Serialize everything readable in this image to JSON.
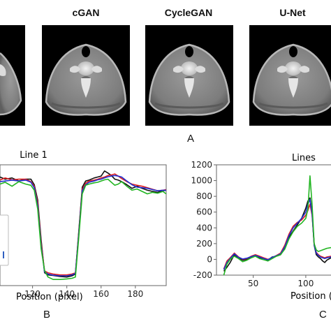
{
  "figure": {
    "models": [
      "cGAN",
      "CycleGAN",
      "U-Net"
    ],
    "panel_labels": {
      "a": "A",
      "b": "B",
      "c": "C"
    }
  },
  "colors": {
    "black": "#111111",
    "red": "#e02020",
    "blue": "#2030d0",
    "green": "#22b522",
    "axis": "#666666",
    "legend_line": "#3060c0"
  },
  "chart_data": [
    {
      "type": "line",
      "title": "Line 1",
      "xlabel": "Position (pixel)",
      "ylabel": "",
      "xlim": [
        101,
        198
      ],
      "ylim": [
        -90,
        305
      ],
      "xticks": [
        120,
        140,
        160,
        180
      ],
      "grid": false,
      "series": [
        {
          "color": "black",
          "x": [
            101,
            104,
            108,
            112,
            116,
            119,
            121,
            123,
            125,
            127,
            129,
            132,
            136,
            140,
            143,
            145,
            147,
            149,
            151,
            153,
            156,
            158,
            160,
            162,
            164,
            166,
            168,
            170,
            172,
            175,
            178,
            181,
            184,
            187,
            190,
            193,
            196,
            198
          ],
          "y": [
            265,
            258,
            262,
            252,
            258,
            258,
            240,
            190,
            60,
            -48,
            -55,
            -57,
            -60,
            -62,
            -58,
            -52,
            90,
            232,
            252,
            255,
            262,
            265,
            268,
            285,
            278,
            270,
            258,
            255,
            250,
            240,
            228,
            235,
            228,
            222,
            218,
            215,
            220,
            222
          ]
        },
        {
          "color": "red",
          "x": [
            101,
            104,
            108,
            112,
            116,
            119,
            121,
            123,
            125,
            127,
            129,
            132,
            136,
            140,
            143,
            145,
            147,
            149,
            151,
            153,
            156,
            158,
            160,
            162,
            164,
            166,
            168,
            170,
            172,
            175,
            178,
            181,
            184,
            187,
            190,
            193,
            196,
            198
          ],
          "y": [
            255,
            262,
            256,
            258,
            258,
            250,
            235,
            180,
            50,
            -42,
            -48,
            -52,
            -55,
            -55,
            -52,
            -48,
            85,
            225,
            245,
            252,
            255,
            258,
            262,
            265,
            270,
            272,
            275,
            268,
            260,
            250,
            242,
            238,
            235,
            230,
            225,
            220,
            222,
            224
          ]
        },
        {
          "color": "blue",
          "x": [
            101,
            104,
            108,
            112,
            116,
            119,
            121,
            123,
            125,
            127,
            129,
            132,
            136,
            140,
            143,
            145,
            147,
            149,
            151,
            153,
            156,
            158,
            160,
            162,
            164,
            166,
            168,
            170,
            172,
            175,
            178,
            181,
            184,
            187,
            190,
            193,
            196,
            198
          ],
          "y": [
            250,
            252,
            255,
            252,
            255,
            248,
            230,
            170,
            40,
            -45,
            -52,
            -56,
            -58,
            -58,
            -55,
            -50,
            80,
            220,
            240,
            248,
            252,
            256,
            258,
            262,
            266,
            268,
            270,
            268,
            265,
            252,
            240,
            232,
            230,
            228,
            224,
            220,
            222,
            222
          ]
        },
        {
          "color": "green",
          "x": [
            101,
            104,
            108,
            112,
            116,
            119,
            121,
            123,
            125,
            127,
            129,
            132,
            136,
            140,
            143,
            145,
            147,
            149,
            151,
            153,
            156,
            158,
            160,
            162,
            164,
            166,
            168,
            170,
            172,
            175,
            178,
            181,
            184,
            187,
            190,
            193,
            196,
            198
          ],
          "y": [
            242,
            248,
            235,
            250,
            242,
            238,
            222,
            160,
            30,
            -40,
            -62,
            -70,
            -70,
            -68,
            -66,
            -62,
            70,
            210,
            238,
            242,
            246,
            248,
            252,
            256,
            258,
            248,
            238,
            242,
            250,
            235,
            222,
            226,
            218,
            210,
            215,
            212,
            218,
            210
          ]
        }
      ]
    },
    {
      "type": "line",
      "title": "Lines",
      "xlabel": "Position (",
      "ylabel": "",
      "xlim": [
        15,
        124
      ],
      "ylim": [
        -200,
        1200
      ],
      "yticks": [
        -200,
        0,
        200,
        400,
        600,
        800,
        1000,
        1200
      ],
      "xticks": [
        50,
        100
      ],
      "grid": false,
      "series": [
        {
          "color": "black",
          "x": [
            22,
            25,
            28,
            32,
            36,
            40,
            44,
            48,
            52,
            56,
            60,
            64,
            68,
            72,
            76,
            80,
            84,
            88,
            92,
            96,
            100,
            102,
            104,
            106,
            108,
            110,
            112,
            114,
            116,
            118,
            120,
            124
          ],
          "y": [
            -150,
            -100,
            -40,
            60,
            20,
            -10,
            0,
            30,
            50,
            20,
            10,
            -10,
            30,
            40,
            60,
            140,
            280,
            360,
            440,
            520,
            650,
            740,
            780,
            600,
            180,
            60,
            30,
            10,
            -20,
            -40,
            -10,
            20
          ]
        },
        {
          "color": "red",
          "x": [
            22,
            25,
            28,
            32,
            36,
            40,
            44,
            48,
            52,
            56,
            60,
            64,
            68,
            72,
            76,
            80,
            84,
            88,
            92,
            96,
            100,
            102,
            104,
            106,
            108,
            110,
            112,
            114,
            116,
            118,
            120,
            124
          ],
          "y": [
            -120,
            -20,
            20,
            80,
            30,
            0,
            10,
            40,
            60,
            40,
            20,
            0,
            20,
            50,
            80,
            180,
            320,
            420,
            470,
            500,
            560,
            620,
            700,
            560,
            200,
            90,
            60,
            40,
            30,
            20,
            30,
            40
          ]
        },
        {
          "color": "blue",
          "x": [
            22,
            25,
            28,
            32,
            36,
            40,
            44,
            48,
            52,
            56,
            60,
            64,
            68,
            72,
            76,
            80,
            84,
            88,
            92,
            96,
            100,
            102,
            104,
            106,
            108,
            110,
            112,
            114,
            116,
            118,
            120,
            124
          ],
          "y": [
            -130,
            -40,
            10,
            70,
            25,
            5,
            15,
            35,
            50,
            30,
            10,
            -5,
            25,
            45,
            70,
            160,
            300,
            400,
            460,
            520,
            600,
            700,
            760,
            580,
            190,
            80,
            50,
            30,
            20,
            10,
            20,
            30
          ]
        },
        {
          "color": "green",
          "x": [
            22,
            25,
            28,
            32,
            36,
            40,
            44,
            48,
            52,
            56,
            60,
            64,
            68,
            72,
            76,
            80,
            84,
            88,
            92,
            96,
            100,
            102,
            104,
            106,
            108,
            110,
            112,
            114,
            116,
            118,
            120,
            124
          ],
          "y": [
            -200,
            -60,
            0,
            40,
            10,
            -30,
            -10,
            20,
            40,
            10,
            -5,
            -20,
            10,
            40,
            60,
            130,
            260,
            350,
            420,
            460,
            520,
            640,
            1060,
            700,
            200,
            120,
            100,
            110,
            120,
            130,
            140,
            150
          ]
        }
      ]
    }
  ]
}
